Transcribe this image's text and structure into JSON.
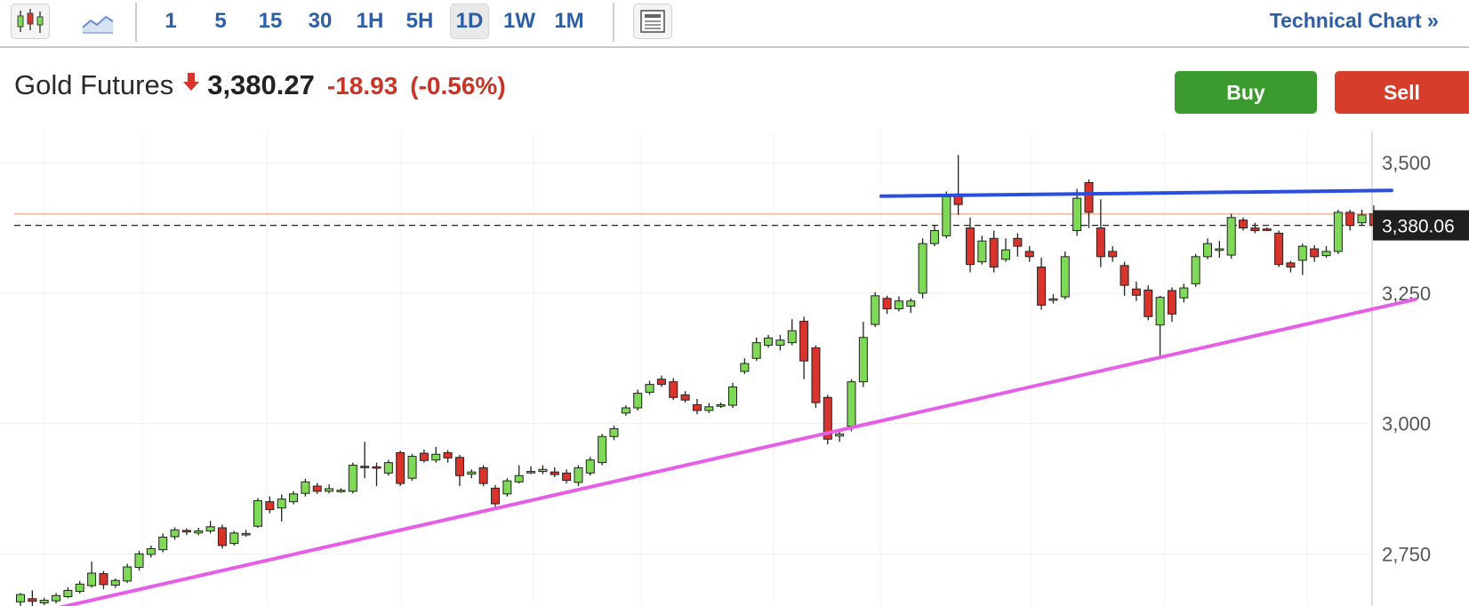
{
  "toolbar": {
    "timeframes": [
      "1",
      "5",
      "15",
      "30",
      "1H",
      "5H",
      "1D",
      "1W",
      "1M"
    ],
    "active_timeframe": "1D",
    "technical_chart_label": "Technical Chart",
    "technical_chart_chevron": "»",
    "icons": [
      "candlestick-chart-icon",
      "area-chart-icon",
      "news-layout-icon"
    ]
  },
  "instrument": {
    "name": "Gold Futures",
    "direction": "down",
    "price": "3,380.27",
    "change": "-18.93",
    "change_pct": "(-0.56%)"
  },
  "actions": {
    "buy_label": "Buy",
    "sell_label": "Sell"
  },
  "colors": {
    "up": "#7ed957",
    "down": "#d9342b",
    "accent_blue": "#2d5ea8",
    "buy": "#3b9b2f",
    "sell": "#d63d2b",
    "resistance_line": "#2a4fe0",
    "support_line": "#e65ee8",
    "last_price_line": "#f0a58f"
  },
  "chart_data": {
    "type": "candlestick",
    "ylim": [
      2650,
      3560
    ],
    "y_ticks": [
      "3,500",
      "3,250",
      "3,000",
      "2,750"
    ],
    "y_tick_values": [
      3500,
      3250,
      3000,
      2750
    ],
    "current_price_label": "3,380.06",
    "current_price_value": 3380.06,
    "last_close_reference": 3402,
    "candles": [
      [
        2658,
        2672,
        2650,
        2675
      ],
      [
        2664,
        2659,
        2649,
        2680
      ],
      [
        2656,
        2661,
        2652,
        2666
      ],
      [
        2660,
        2670,
        2655,
        2675
      ],
      [
        2668,
        2680,
        2665,
        2686
      ],
      [
        2678,
        2692,
        2674,
        2698
      ],
      [
        2689,
        2713,
        2685,
        2735
      ],
      [
        2712,
        2691,
        2682,
        2717
      ],
      [
        2690,
        2699,
        2685,
        2703
      ],
      [
        2698,
        2725,
        2694,
        2731
      ],
      [
        2724,
        2750,
        2718,
        2756
      ],
      [
        2749,
        2760,
        2743,
        2766
      ],
      [
        2758,
        2782,
        2753,
        2789
      ],
      [
        2783,
        2796,
        2777,
        2801
      ],
      [
        2795,
        2792,
        2786,
        2799
      ],
      [
        2790,
        2794,
        2786,
        2800
      ],
      [
        2794,
        2802,
        2789,
        2813
      ],
      [
        2800,
        2766,
        2760,
        2806
      ],
      [
        2770,
        2790,
        2766,
        2794
      ],
      [
        2787,
        2789,
        2783,
        2796
      ],
      [
        2803,
        2852,
        2800,
        2857
      ],
      [
        2850,
        2835,
        2828,
        2860
      ],
      [
        2838,
        2855,
        2812,
        2864
      ],
      [
        2850,
        2865,
        2845,
        2870
      ],
      [
        2866,
        2888,
        2860,
        2894
      ],
      [
        2880,
        2870,
        2865,
        2886
      ],
      [
        2870,
        2875,
        2866,
        2883
      ],
      [
        2870,
        2872,
        2867,
        2876
      ],
      [
        2870,
        2920,
        2866,
        2925
      ],
      [
        2918,
        2916,
        2895,
        2965
      ],
      [
        2917,
        2915,
        2880,
        2925
      ],
      [
        2905,
        2925,
        2900,
        2930
      ],
      [
        2944,
        2885,
        2880,
        2948
      ],
      [
        2895,
        2937,
        2890,
        2942
      ],
      [
        2943,
        2929,
        2925,
        2950
      ],
      [
        2930,
        2941,
        2925,
        2955
      ],
      [
        2944,
        2934,
        2925,
        2949
      ],
      [
        2935,
        2900,
        2880,
        2940
      ],
      [
        2903,
        2907,
        2895,
        2912
      ],
      [
        2915,
        2885,
        2880,
        2920
      ],
      [
        2876,
        2846,
        2840,
        2882
      ],
      [
        2865,
        2890,
        2860,
        2895
      ],
      [
        2888,
        2900,
        2885,
        2920
      ],
      [
        2907,
        2908,
        2903,
        2918
      ],
      [
        2908,
        2912,
        2903,
        2920
      ],
      [
        2907,
        2902,
        2897,
        2916
      ],
      [
        2905,
        2891,
        2885,
        2912
      ],
      [
        2887,
        2915,
        2880,
        2920
      ],
      [
        2905,
        2930,
        2900,
        2936
      ],
      [
        2925,
        2975,
        2920,
        2980
      ],
      [
        2975,
        2990,
        2968,
        2996
      ],
      [
        3020,
        3030,
        3015,
        3035
      ],
      [
        3030,
        3058,
        3025,
        3065
      ],
      [
        3060,
        3075,
        3055,
        3082
      ],
      [
        3085,
        3075,
        3070,
        3092
      ],
      [
        3080,
        3050,
        3045,
        3087
      ],
      [
        3055,
        3045,
        3040,
        3062
      ],
      [
        3036,
        3025,
        3018,
        3047
      ],
      [
        3025,
        3032,
        3020,
        3039
      ],
      [
        3033,
        3036,
        3030,
        3040
      ],
      [
        3035,
        3070,
        3030,
        3078
      ],
      [
        3100,
        3115,
        3095,
        3125
      ],
      [
        3125,
        3155,
        3120,
        3165
      ],
      [
        3150,
        3164,
        3145,
        3170
      ],
      [
        3150,
        3160,
        3140,
        3170
      ],
      [
        3155,
        3178,
        3150,
        3200
      ],
      [
        3196,
        3120,
        3085,
        3205
      ],
      [
        3145,
        3040,
        3030,
        3150
      ],
      [
        3050,
        2970,
        2960,
        3055
      ],
      [
        2976,
        2980,
        2965,
        2990
      ],
      [
        2995,
        3080,
        2985,
        3085
      ],
      [
        3080,
        3165,
        3070,
        3195
      ],
      [
        3190,
        3245,
        3185,
        3252
      ],
      [
        3240,
        3220,
        3210,
        3245
      ],
      [
        3220,
        3235,
        3215,
        3244
      ],
      [
        3225,
        3235,
        3212,
        3240
      ],
      [
        3250,
        3345,
        3240,
        3355
      ],
      [
        3345,
        3370,
        3340,
        3380
      ],
      [
        3360,
        3435,
        3355,
        3445
      ],
      [
        3440,
        3420,
        3400,
        3515
      ],
      [
        3375,
        3305,
        3290,
        3395
      ],
      [
        3310,
        3350,
        3305,
        3360
      ],
      [
        3355,
        3300,
        3290,
        3370
      ],
      [
        3315,
        3333,
        3310,
        3355
      ],
      [
        3355,
        3340,
        3320,
        3365
      ],
      [
        3330,
        3320,
        3310,
        3340
      ],
      [
        3300,
        3227,
        3218,
        3318
      ],
      [
        3239,
        3239,
        3230,
        3248
      ],
      [
        3243,
        3320,
        3238,
        3330
      ],
      [
        3370,
        3432,
        3360,
        3450
      ],
      [
        3462,
        3405,
        3375,
        3468
      ],
      [
        3375,
        3320,
        3300,
        3430
      ],
      [
        3330,
        3320,
        3310,
        3340
      ],
      [
        3303,
        3265,
        3245,
        3310
      ],
      [
        3258,
        3246,
        3235,
        3272
      ],
      [
        3256,
        3205,
        3198,
        3265
      ],
      [
        3189,
        3242,
        3130,
        3245
      ],
      [
        3255,
        3210,
        3195,
        3261
      ],
      [
        3241,
        3260,
        3232,
        3268
      ],
      [
        3268,
        3320,
        3262,
        3325
      ],
      [
        3320,
        3345,
        3315,
        3355
      ],
      [
        3332,
        3335,
        3318,
        3350
      ],
      [
        3323,
        3395,
        3316,
        3402
      ],
      [
        3390,
        3375,
        3370,
        3395
      ],
      [
        3375,
        3370,
        3365,
        3385
      ],
      [
        3373,
        3372,
        3369,
        3376
      ],
      [
        3365,
        3305,
        3300,
        3370
      ],
      [
        3308,
        3300,
        3290,
        3312
      ],
      [
        3313,
        3340,
        3285,
        3345
      ],
      [
        3335,
        3320,
        3310,
        3342
      ],
      [
        3322,
        3330,
        3318,
        3340
      ],
      [
        3330,
        3405,
        3325,
        3410
      ],
      [
        3405,
        3380,
        3370,
        3410
      ],
      [
        3385,
        3400,
        3380,
        3410
      ],
      [
        3402,
        3380,
        3372,
        3418
      ]
    ],
    "trendlines": [
      {
        "name": "resistance",
        "color": "#2a4fe0",
        "points": [
          [
            72.5,
            3436
          ],
          [
            115.5,
            3447
          ]
        ]
      },
      {
        "name": "support",
        "color": "#e65ee8",
        "points": [
          [
            0,
            2630
          ],
          [
            117.5,
            3238
          ]
        ]
      }
    ]
  }
}
